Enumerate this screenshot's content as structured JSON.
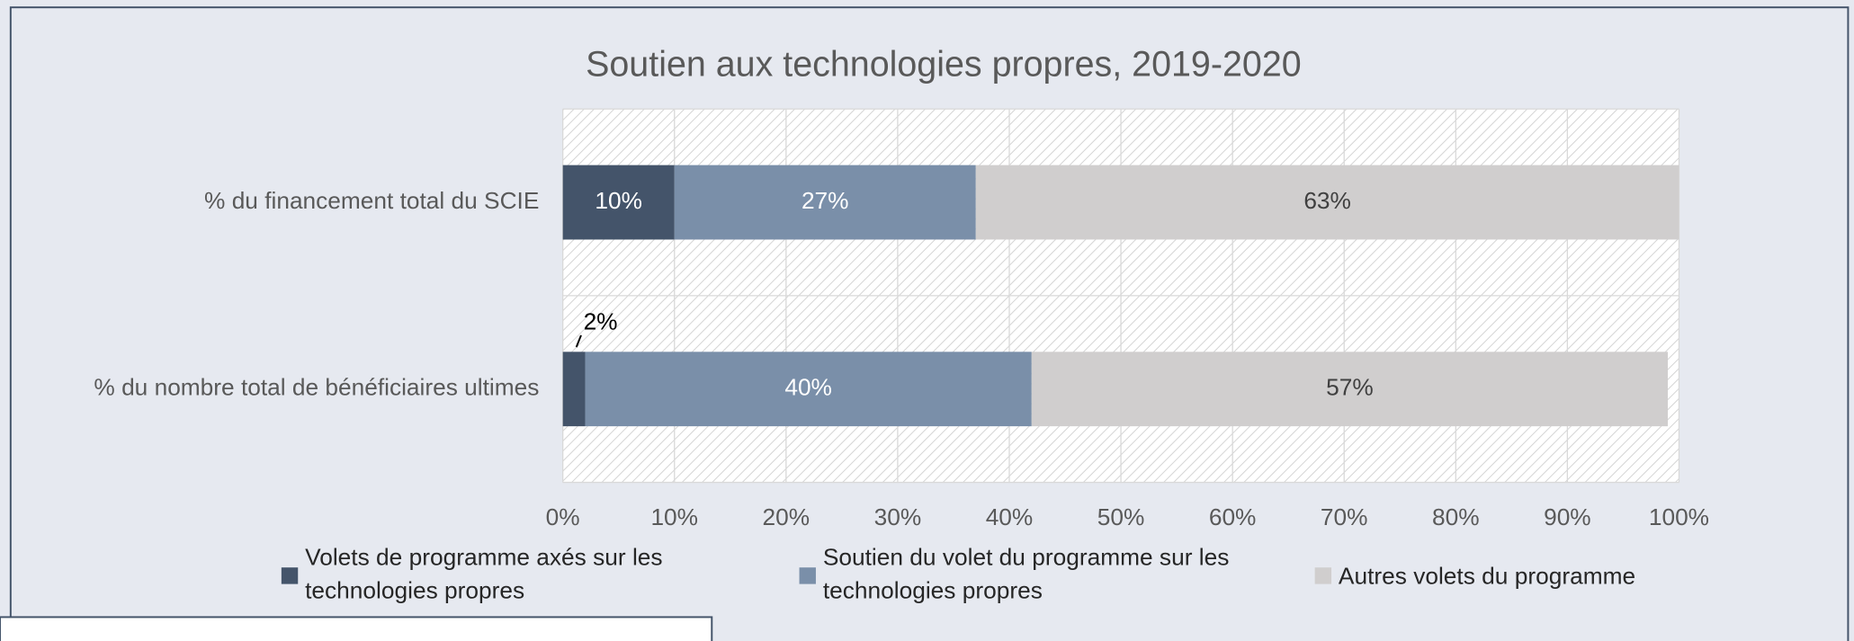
{
  "chart_data": {
    "type": "stacked_bar_horizontal",
    "title": "Soutien aux technologies propres, 2019-2020",
    "categories": [
      "% du financement total du SCIE",
      "% du nombre total de bénéficiaires ultimes"
    ],
    "series": [
      {
        "name": "Volets de programme axés sur les technologies propres",
        "color": "#44546a",
        "values": [
          10,
          2
        ],
        "value_labels": [
          "10%",
          "2%"
        ]
      },
      {
        "name": "Soutien du volet du programme sur les technologies propres",
        "color": "#7a8fa9",
        "values": [
          27,
          40
        ],
        "value_labels": [
          "27%",
          "40%"
        ]
      },
      {
        "name": "Autres volets du programme",
        "color": "#d0cece",
        "values": [
          63,
          57
        ],
        "value_labels": [
          "63%",
          "57%"
        ]
      }
    ],
    "xlim": [
      0,
      100
    ],
    "xticks": [
      {
        "value": 0,
        "label": "0%"
      },
      {
        "value": 10,
        "label": "10%"
      },
      {
        "value": 20,
        "label": "20%"
      },
      {
        "value": 30,
        "label": "30%"
      },
      {
        "value": 40,
        "label": "40%"
      },
      {
        "value": 50,
        "label": "50%"
      },
      {
        "value": 60,
        "label": "60%"
      },
      {
        "value": 70,
        "label": "70%"
      },
      {
        "value": 80,
        "label": "80%"
      },
      {
        "value": 90,
        "label": "90%"
      },
      {
        "value": 100,
        "label": "100%"
      }
    ],
    "grid": true,
    "legend": "bottom"
  }
}
